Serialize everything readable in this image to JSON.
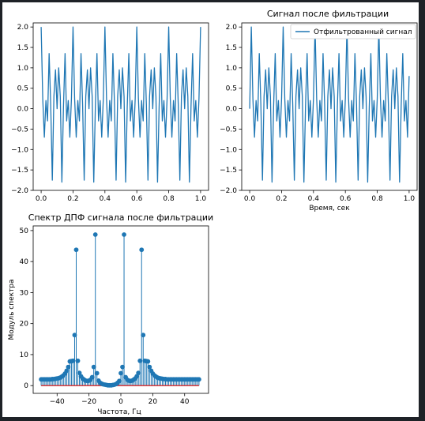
{
  "chart_data": [
    {
      "id": "top-left",
      "type": "line",
      "title": "",
      "xlabel": "",
      "ylabel": "",
      "xlim": [
        -0.05,
        1.05
      ],
      "ylim": [
        -2.0,
        2.1
      ],
      "xticks": [
        0.0,
        0.2,
        0.4,
        0.6,
        0.8,
        1.0
      ],
      "xtick_labels": [
        "0.0",
        "0.2",
        "0.4",
        "0.6",
        "0.8",
        "1.0"
      ],
      "yticks": [
        -2.0,
        -1.5,
        -1.0,
        -0.5,
        0.0,
        0.5,
        1.0,
        1.5,
        2.0
      ],
      "ytick_labels": [
        "−2.0",
        "−1.5",
        "−1.0",
        "−0.5",
        "0.0",
        "0.5",
        "1.0",
        "1.5",
        "2.0"
      ],
      "series": [
        {
          "color": "#1f77b4",
          "x": [
            0.0,
            0.01,
            0.02,
            0.03,
            0.04,
            0.05,
            0.06,
            0.07,
            0.08,
            0.09,
            0.1,
            0.11,
            0.12,
            0.13,
            0.14,
            0.15,
            0.16,
            0.17,
            0.18,
            0.19,
            0.2,
            0.21,
            0.22,
            0.23,
            0.24,
            0.25,
            0.26,
            0.27,
            0.28,
            0.29,
            0.3,
            0.31,
            0.32,
            0.33,
            0.34,
            0.35,
            0.36,
            0.37,
            0.38,
            0.39,
            0.4,
            0.41,
            0.42,
            0.43,
            0.44,
            0.45,
            0.46,
            0.47,
            0.48,
            0.49,
            0.5,
            0.51,
            0.52,
            0.53,
            0.54,
            0.55,
            0.56,
            0.57,
            0.58,
            0.59,
            0.6,
            0.61,
            0.62,
            0.63,
            0.64,
            0.65,
            0.66,
            0.67,
            0.68,
            0.69,
            0.7,
            0.71,
            0.72,
            0.73,
            0.74,
            0.75,
            0.76,
            0.77,
            0.78,
            0.79,
            0.8,
            0.81,
            0.82,
            0.83,
            0.84,
            0.85,
            0.86,
            0.87,
            0.88,
            0.89,
            0.9,
            0.91,
            0.92,
            0.93,
            0.94,
            0.95,
            0.96,
            0.97,
            0.98,
            0.99,
            1.0
          ],
          "y": [
            2.0,
            0.25,
            -0.7,
            0.2,
            -0.3,
            1.35,
            0.1,
            -1.75,
            0.3,
            0.95,
            0.0,
            1.0,
            0.3,
            -1.8,
            0.05,
            1.35,
            -0.3,
            0.2,
            -0.7,
            0.25,
            2.0,
            0.25,
            -0.7,
            0.2,
            -0.3,
            1.35,
            0.1,
            -1.75,
            0.3,
            0.95,
            0.0,
            1.0,
            0.3,
            -1.8,
            0.05,
            1.35,
            -0.3,
            0.2,
            -0.7,
            0.25,
            2.0,
            0.25,
            -0.7,
            0.2,
            -0.3,
            1.35,
            0.1,
            -1.75,
            0.3,
            0.95,
            0.0,
            1.0,
            0.3,
            -1.8,
            0.05,
            1.35,
            -0.3,
            0.2,
            -0.7,
            0.25,
            2.0,
            0.25,
            -0.7,
            0.2,
            -0.3,
            1.35,
            0.1,
            -1.75,
            0.3,
            0.95,
            0.0,
            1.0,
            0.3,
            -1.8,
            0.05,
            1.35,
            -0.3,
            0.2,
            -0.7,
            0.25,
            2.0,
            0.25,
            -0.7,
            0.2,
            -0.3,
            1.35,
            0.1,
            -1.75,
            0.3,
            0.95,
            0.0,
            1.0,
            0.3,
            -1.8,
            0.05,
            1.35,
            -0.3,
            0.2,
            -0.7,
            0.25,
            2.0
          ]
        }
      ]
    },
    {
      "id": "top-right",
      "type": "line",
      "title": "Сигнал после фильтрации",
      "xlabel": "Время, сек",
      "ylabel": "",
      "xlim": [
        -0.05,
        1.05
      ],
      "ylim": [
        -2.0,
        2.1
      ],
      "legend": "top-right",
      "xticks": [
        0.0,
        0.2,
        0.4,
        0.6,
        0.8,
        1.0
      ],
      "xtick_labels": [
        "0.0",
        "0.2",
        "0.4",
        "0.6",
        "0.8",
        "1.0"
      ],
      "yticks": [
        -2.0,
        -1.5,
        -1.0,
        -0.5,
        0.0,
        0.5,
        1.0,
        1.5,
        2.0
      ],
      "ytick_labels": [
        "−2.0",
        "−1.5",
        "−1.0",
        "−0.5",
        "0.0",
        "0.5",
        "1.0",
        "1.5",
        "2.0"
      ],
      "series": [
        {
          "name": "Отфильтрованный сигнал",
          "color": "#1f77b4",
          "x": [
            0.0,
            0.01,
            0.02,
            0.03,
            0.04,
            0.05,
            0.06,
            0.07,
            0.08,
            0.09,
            0.1,
            0.11,
            0.12,
            0.13,
            0.14,
            0.15,
            0.16,
            0.17,
            0.18,
            0.19,
            0.2,
            0.21,
            0.22,
            0.23,
            0.24,
            0.25,
            0.26,
            0.27,
            0.28,
            0.29,
            0.3,
            0.31,
            0.32,
            0.33,
            0.34,
            0.35,
            0.36,
            0.37,
            0.38,
            0.39,
            0.4,
            0.41,
            0.42,
            0.43,
            0.44,
            0.45,
            0.46,
            0.47,
            0.48,
            0.49,
            0.5,
            0.51,
            0.52,
            0.53,
            0.54,
            0.55,
            0.56,
            0.57,
            0.58,
            0.59,
            0.6,
            0.61,
            0.62,
            0.63,
            0.64,
            0.65,
            0.66,
            0.67,
            0.68,
            0.69,
            0.7,
            0.71,
            0.72,
            0.73,
            0.74,
            0.75,
            0.76,
            0.77,
            0.78,
            0.79,
            0.8,
            0.81,
            0.82,
            0.83,
            0.84,
            0.85,
            0.86,
            0.87,
            0.88,
            0.89,
            0.9,
            0.91,
            0.92,
            0.93,
            0.94,
            0.95,
            0.96,
            0.97,
            0.98,
            0.99,
            1.0
          ],
          "y": [
            0.0,
            2.0,
            0.25,
            -0.7,
            0.2,
            -0.3,
            1.35,
            0.1,
            -1.75,
            0.3,
            0.95,
            0.0,
            1.0,
            0.3,
            -1.8,
            0.05,
            1.35,
            -0.3,
            0.2,
            -0.7,
            0.25,
            2.0,
            0.25,
            -0.7,
            0.2,
            -0.3,
            1.35,
            0.1,
            -1.75,
            0.3,
            0.95,
            0.0,
            1.0,
            0.3,
            -1.8,
            0.05,
            1.35,
            -0.3,
            0.2,
            -0.7,
            0.25,
            2.0,
            0.25,
            -0.7,
            0.2,
            -0.3,
            1.35,
            0.1,
            -1.75,
            0.3,
            0.95,
            0.0,
            1.0,
            0.3,
            -1.8,
            0.05,
            1.35,
            -0.3,
            0.2,
            -0.7,
            0.25,
            2.0,
            0.25,
            -0.7,
            0.2,
            -0.3,
            1.35,
            0.1,
            -1.75,
            0.3,
            0.95,
            0.0,
            1.0,
            0.3,
            -1.8,
            0.05,
            1.35,
            -0.3,
            0.2,
            -0.7,
            0.25,
            2.0,
            0.25,
            -0.7,
            0.2,
            -0.3,
            1.35,
            0.1,
            -1.75,
            0.3,
            0.95,
            0.0,
            1.0,
            0.3,
            -1.8,
            0.05,
            1.35,
            -0.3,
            0.2,
            -0.7,
            0.8
          ]
        }
      ]
    },
    {
      "id": "bottom-left",
      "type": "stem",
      "title": "Спектр ДПФ сигнала после фильтрации",
      "xlabel": "Частота, Гц",
      "ylabel": "Модуль спектра",
      "xlim": [
        -55,
        55
      ],
      "ylim": [
        -2.5,
        51.5
      ],
      "xticks": [
        -40,
        -20,
        0,
        20,
        40
      ],
      "xtick_labels": [
        "−40",
        "−20",
        "0",
        "20",
        "40"
      ],
      "yticks": [
        0,
        10,
        20,
        30,
        40,
        50
      ],
      "ytick_labels": [
        "0",
        "10",
        "20",
        "30",
        "40",
        "50"
      ],
      "marker_color": "#1f77b4",
      "baseline_color": "#d62728",
      "series": [
        {
          "x": [
            -50,
            -49,
            -48,
            -47,
            -46,
            -45,
            -44,
            -43,
            -42,
            -41,
            -40,
            -39,
            -38,
            -37,
            -36,
            -35,
            -34,
            -33,
            -32,
            -31,
            -30,
            -29,
            -28,
            -27,
            -26,
            -25,
            -24,
            -23,
            -22,
            -21,
            -20,
            -19,
            -18,
            -17,
            -16,
            -15,
            -14,
            -13,
            -12,
            -11,
            -10,
            -9,
            -8,
            -7,
            -6,
            -5,
            -4,
            -3,
            -2,
            -1,
            0,
            1,
            2,
            3,
            4,
            5,
            6,
            7,
            8,
            9,
            10,
            11,
            12,
            13,
            14,
            15,
            16,
            17,
            18,
            19,
            20,
            21,
            22,
            23,
            24,
            25,
            26,
            27,
            28,
            29,
            30,
            31,
            32,
            33,
            34,
            35,
            36,
            37,
            38,
            39,
            40,
            41,
            42,
            43,
            44,
            45,
            46,
            47,
            48,
            49
          ],
          "y": [
            2.0,
            2.0,
            2.0,
            2.0,
            2.0,
            2.0,
            2.0,
            2.1,
            2.1,
            2.2,
            2.3,
            2.4,
            2.6,
            2.9,
            3.3,
            3.9,
            4.8,
            6.0,
            7.8,
            7.9,
            8.0,
            16.3,
            43.8,
            8.0,
            4.1,
            3.0,
            2.3,
            1.9,
            1.6,
            1.5,
            1.6,
            1.9,
            2.7,
            6.0,
            48.7,
            4.0,
            1.6,
            0.9,
            0.6,
            0.4,
            0.3,
            0.2,
            0.1,
            0.1,
            0.1,
            0.2,
            0.3,
            0.5,
            0.9,
            1.5,
            4.0,
            6.0,
            48.7,
            2.7,
            1.9,
            1.6,
            1.5,
            1.6,
            1.9,
            2.3,
            3.0,
            4.1,
            8.0,
            43.8,
            16.3,
            8.0,
            7.9,
            7.8,
            6.0,
            4.8,
            3.9,
            3.3,
            2.9,
            2.6,
            2.4,
            2.3,
            2.2,
            2.1,
            2.1,
            2.0,
            2.0,
            2.0,
            2.0,
            2.0,
            2.0,
            2.0,
            2.0,
            2.0,
            2.0,
            2.0,
            2.0,
            2.0,
            2.0,
            2.0,
            2.0,
            2.0,
            2.0,
            2.0,
            2.0,
            2.0
          ]
        }
      ]
    }
  ]
}
